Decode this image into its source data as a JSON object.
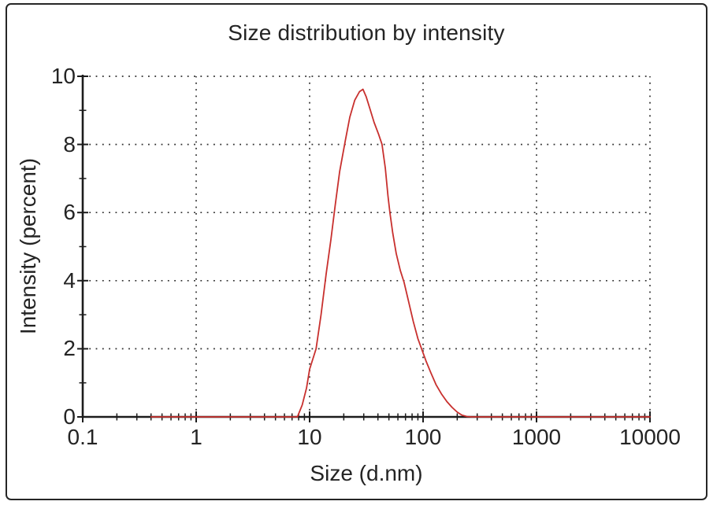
{
  "figure": {
    "background": "#ffffff",
    "border_color": "#262626"
  },
  "chart_data": {
    "type": "line",
    "title": "Size distribution by intensity",
    "xlabel": "Size (d.nm)",
    "ylabel": "Intensity (percent)",
    "xscale": "log",
    "xlim": [
      0.1,
      10000
    ],
    "ylim": [
      0,
      10
    ],
    "x_ticks": [
      {
        "value": 0.1,
        "label": "0.1"
      },
      {
        "value": 1,
        "label": "1"
      },
      {
        "value": 10,
        "label": "10"
      },
      {
        "value": 100,
        "label": "100"
      },
      {
        "value": 1000,
        "label": "1000"
      },
      {
        "value": 10000,
        "label": "10000"
      }
    ],
    "y_ticks": [
      {
        "value": 0,
        "label": "0"
      },
      {
        "value": 2,
        "label": "2"
      },
      {
        "value": 4,
        "label": "4"
      },
      {
        "value": 6,
        "label": "6"
      },
      {
        "value": 8,
        "label": "8"
      },
      {
        "value": 10,
        "label": "10"
      }
    ],
    "y_minor_ticks": [
      1,
      3,
      5,
      7,
      9
    ],
    "grid": {
      "style": "dotted",
      "color": "#2f2f2f",
      "x_at": [
        1,
        10,
        100,
        1000,
        10000
      ],
      "y_at": [
        2,
        4,
        6,
        8,
        10
      ]
    },
    "axis_color": "#1c1c1c",
    "series": [
      {
        "name": "intensity-distribution",
        "color": "#c8302e",
        "peak": {
          "x": 30,
          "y": 9.6
        },
        "points": [
          [
            0.4,
            0
          ],
          [
            3,
            0
          ],
          [
            6,
            0
          ],
          [
            7.8,
            0
          ],
          [
            8.6,
            0.35
          ],
          [
            9.4,
            0.85
          ],
          [
            10,
            1.4
          ],
          [
            11.4,
            2.0
          ],
          [
            12.6,
            3.0
          ],
          [
            14,
            4.2
          ],
          [
            15.4,
            5.2
          ],
          [
            16.8,
            6.2
          ],
          [
            18.4,
            7.2
          ],
          [
            20.6,
            8.1
          ],
          [
            22.6,
            8.8
          ],
          [
            25,
            9.3
          ],
          [
            27.5,
            9.55
          ],
          [
            29.5,
            9.62
          ],
          [
            31.5,
            9.4
          ],
          [
            34,
            9.05
          ],
          [
            37,
            8.65
          ],
          [
            40.5,
            8.3
          ],
          [
            43.5,
            8.0
          ],
          [
            46.5,
            7.3
          ],
          [
            49,
            6.5
          ],
          [
            51,
            6.0
          ],
          [
            54,
            5.4
          ],
          [
            58,
            4.8
          ],
          [
            63,
            4.3
          ],
          [
            68,
            3.95
          ],
          [
            75,
            3.35
          ],
          [
            82,
            2.8
          ],
          [
            90,
            2.3
          ],
          [
            97,
            2.0
          ],
          [
            106,
            1.65
          ],
          [
            117,
            1.3
          ],
          [
            130,
            0.95
          ],
          [
            145,
            0.68
          ],
          [
            162,
            0.45
          ],
          [
            180,
            0.28
          ],
          [
            200,
            0.14
          ],
          [
            220,
            0.05
          ],
          [
            245,
            0.01
          ],
          [
            270,
            0
          ],
          [
            1000,
            0
          ],
          [
            10000,
            0
          ]
        ]
      }
    ]
  }
}
